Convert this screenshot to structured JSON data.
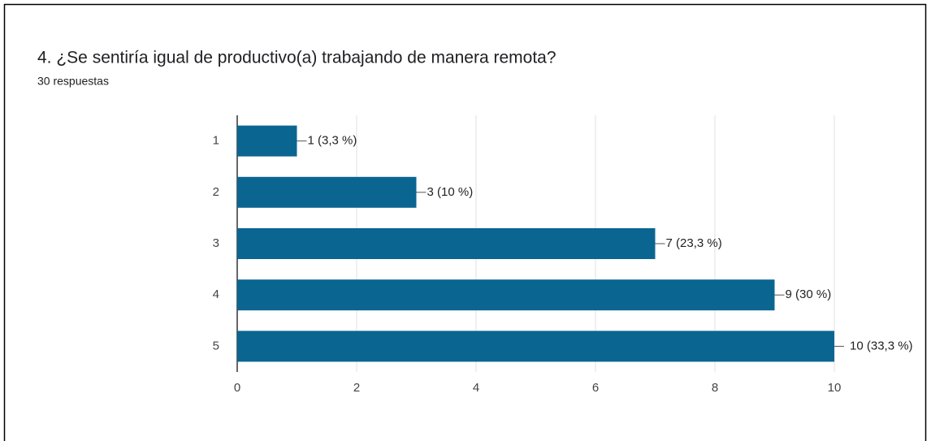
{
  "chart_data": {
    "type": "bar",
    "orientation": "horizontal",
    "title": "4. ¿Se sentiría igual de productivo(a) trabajando de manera remota?",
    "subtitle": "30 respuestas",
    "categories": [
      "1",
      "2",
      "3",
      "4",
      "5"
    ],
    "values": [
      1,
      3,
      7,
      9,
      10
    ],
    "value_labels": [
      "1 (3,3 %)",
      "3 (10 %)",
      "7 (23,3 %)",
      "9 (30 %)",
      "10 (33,3 %)"
    ],
    "color": "#0b6591",
    "xlim": [
      0,
      10
    ],
    "xticks": [
      0,
      2,
      4,
      6,
      8,
      10
    ],
    "grid": true
  }
}
